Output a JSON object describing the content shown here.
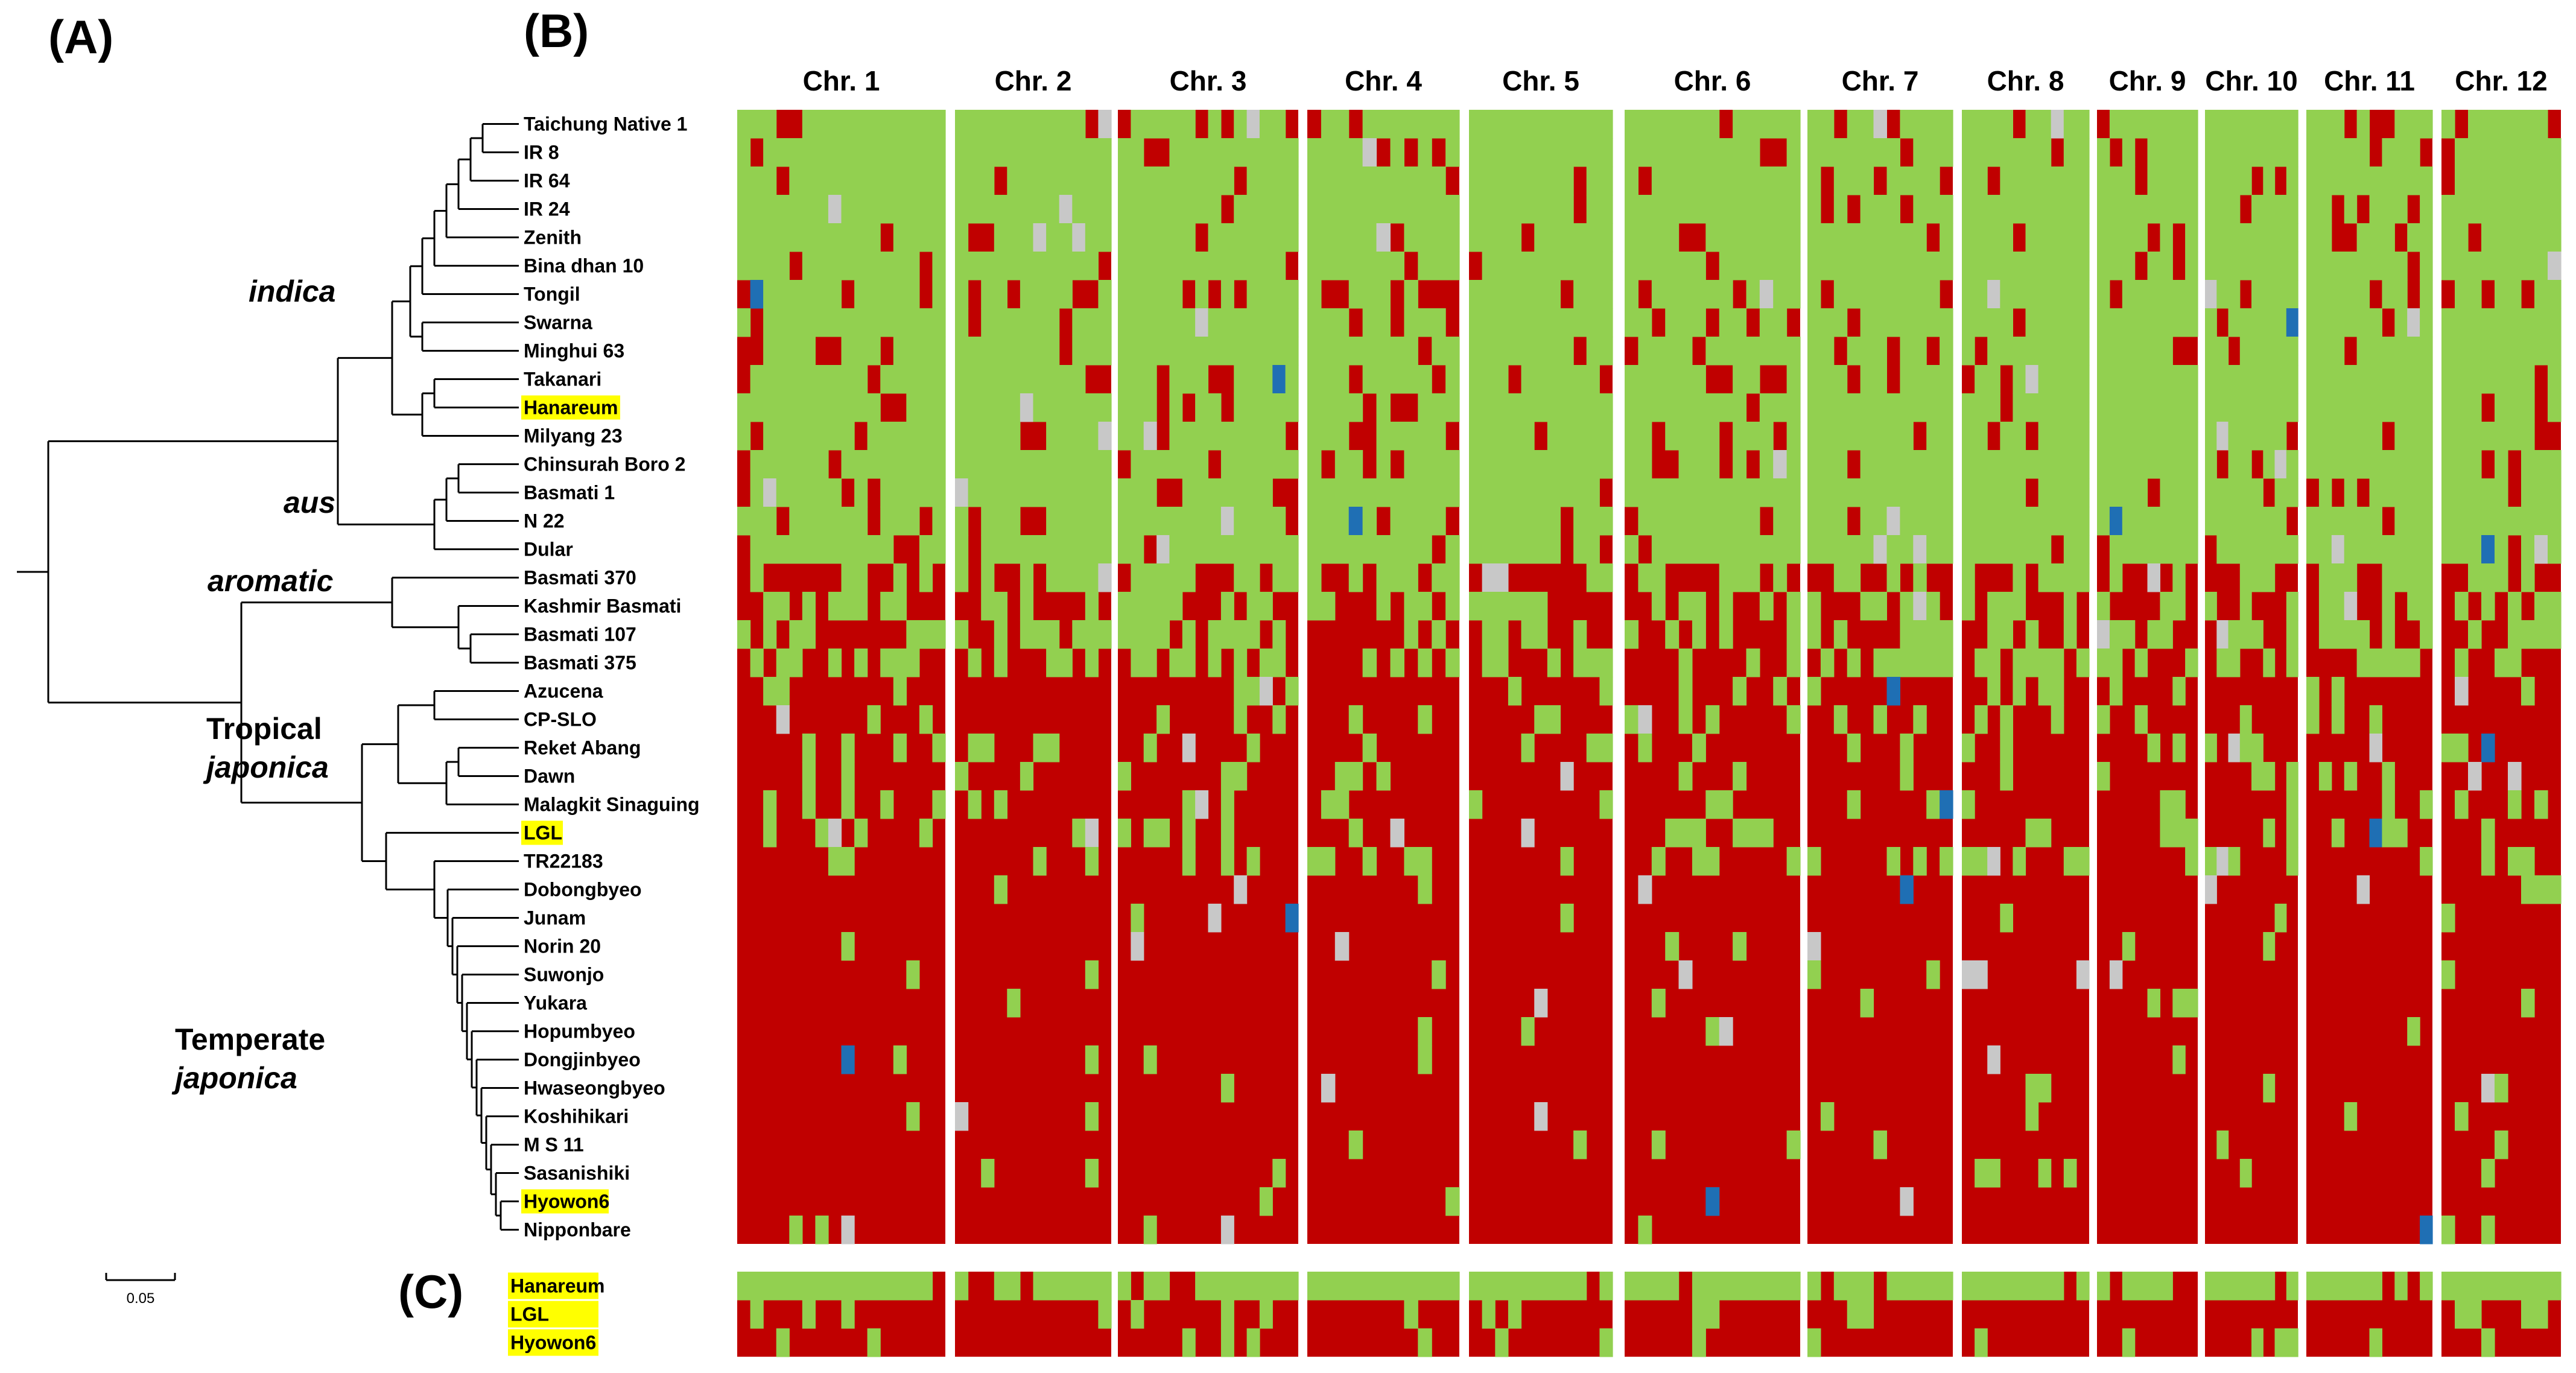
{
  "panels": {
    "a": "(A)",
    "b": "(B)",
    "c": "(C)"
  },
  "colors": {
    "green": "#92d050",
    "red": "#c00000",
    "gray": "#c8c8c8",
    "blue": "#1f6fb4",
    "highlight": "#ffff00"
  },
  "chromosomes": [
    "Chr. 1",
    "Chr. 2",
    "Chr. 3",
    "Chr. 4",
    "Chr. 5",
    "Chr. 6",
    "Chr. 7",
    "Chr. 8",
    "Chr. 9",
    "Chr. 10",
    "Chr. 11",
    "Chr. 12"
  ],
  "taxa": [
    {
      "name": "Taichung Native 1",
      "highlight": false
    },
    {
      "name": "IR 8",
      "highlight": false
    },
    {
      "name": "IR 64",
      "highlight": false
    },
    {
      "name": "IR 24",
      "highlight": false
    },
    {
      "name": "Zenith",
      "highlight": false
    },
    {
      "name": "Bina dhan 10",
      "highlight": false
    },
    {
      "name": "Tongil",
      "highlight": false
    },
    {
      "name": "Swarna",
      "highlight": false
    },
    {
      "name": "Minghui 63",
      "highlight": false
    },
    {
      "name": "Takanari",
      "highlight": false
    },
    {
      "name": "Hanareum",
      "highlight": true
    },
    {
      "name": "Milyang 23",
      "highlight": false
    },
    {
      "name": "Chinsurah Boro 2",
      "highlight": false
    },
    {
      "name": "Basmati 1",
      "highlight": false
    },
    {
      "name": "N 22",
      "highlight": false
    },
    {
      "name": "Dular",
      "highlight": false
    },
    {
      "name": "Basmati 370",
      "highlight": false
    },
    {
      "name": "Kashmir Basmati",
      "highlight": false
    },
    {
      "name": "Basmati 107",
      "highlight": false
    },
    {
      "name": "Basmati 375",
      "highlight": false
    },
    {
      "name": "Azucena",
      "highlight": false
    },
    {
      "name": "CP-SLO",
      "highlight": false
    },
    {
      "name": "Reket Abang",
      "highlight": false
    },
    {
      "name": "Dawn",
      "highlight": false
    },
    {
      "name": "Malagkit Sinaguing",
      "highlight": false
    },
    {
      "name": "LGL",
      "highlight": true
    },
    {
      "name": "TR22183",
      "highlight": false
    },
    {
      "name": "Dobongbyeo",
      "highlight": false
    },
    {
      "name": "Junam",
      "highlight": false
    },
    {
      "name": "Norin 20",
      "highlight": false
    },
    {
      "name": "Suwonjo",
      "highlight": false
    },
    {
      "name": "Yukara",
      "highlight": false
    },
    {
      "name": "Hopumbyeo",
      "highlight": false
    },
    {
      "name": "Dongjinbyeo",
      "highlight": false
    },
    {
      "name": "Hwaseongbyeo",
      "highlight": false
    },
    {
      "name": "Koshihikari",
      "highlight": false
    },
    {
      "name": "M S 11",
      "highlight": false
    },
    {
      "name": "Sasanishiki",
      "highlight": false
    },
    {
      "name": "Hyowon6",
      "highlight": true
    },
    {
      "name": "Nipponbare",
      "highlight": false
    }
  ],
  "groups": [
    {
      "lines": [
        "indica"
      ],
      "italic": [
        true
      ]
    },
    {
      "lines": [
        "aus"
      ],
      "italic": [
        true
      ]
    },
    {
      "lines": [
        "aromatic"
      ],
      "italic": [
        true
      ]
    },
    {
      "lines": [
        "Tropical",
        "japonica"
      ],
      "italic": [
        false,
        true
      ]
    },
    {
      "lines": [
        "Temperate",
        "japonica"
      ],
      "italic": [
        false,
        true
      ]
    }
  ],
  "panel_c_taxa": [
    "Hanareum",
    "LGL",
    "Hyowon6"
  ],
  "scale_bar": {
    "label": "0.05"
  }
}
